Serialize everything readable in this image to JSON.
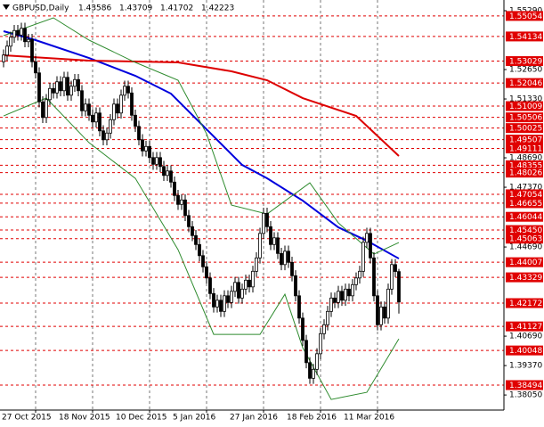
{
  "chart_data": {
    "type": "candlestick",
    "title": "GBPUSD,Daily",
    "categories": [
      "27 Oct 2015",
      null,
      null,
      null,
      null,
      null,
      null,
      null,
      null,
      null,
      null,
      null,
      null,
      null,
      null,
      null,
      "18 Nov 2015",
      null,
      null,
      null,
      null,
      null,
      null,
      null,
      null,
      null,
      null,
      null,
      null,
      null,
      null,
      null,
      "10 Dec 2015",
      null,
      null,
      null,
      null,
      null,
      null,
      null,
      null,
      null,
      null,
      null,
      null,
      null,
      null,
      null,
      "5 Jan 2016",
      null,
      null,
      null,
      null,
      null,
      null,
      null,
      null,
      null,
      null,
      null,
      null,
      null,
      null,
      null,
      "27 Jan 2016",
      null,
      null,
      null,
      null,
      null,
      null,
      null,
      null,
      null,
      null,
      null,
      null,
      null,
      null,
      null,
      "18 Feb 2016",
      null,
      null,
      null,
      null,
      null,
      null,
      null,
      null,
      null,
      null,
      null,
      null,
      null,
      null,
      null,
      "11 Mar 2016",
      null,
      null,
      null,
      null,
      null,
      null,
      null,
      null,
      null,
      null,
      null,
      null,
      null,
      null,
      null
    ],
    "open": [
      1.53,
      1.533,
      1.537,
      1.541,
      1.544,
      1.542,
      1.545,
      1.539,
      1.54,
      1.53,
      1.525,
      1.512,
      1.505,
      1.513,
      1.518,
      1.516,
      1.521,
      1.517,
      1.523,
      1.515,
      1.519,
      1.522,
      1.517,
      1.508,
      1.511,
      1.506,
      1.503,
      1.507,
      1.499,
      1.495,
      1.498,
      1.504,
      1.511,
      1.507,
      1.515,
      1.519,
      1.516,
      1.506,
      1.501,
      1.495,
      1.49,
      1.492,
      1.487,
      1.484,
      1.487,
      1.483,
      1.479,
      1.481,
      1.476,
      1.47,
      1.466,
      1.468,
      1.461,
      1.456,
      1.452,
      1.448,
      1.443,
      1.438,
      1.433,
      1.426,
      1.42,
      1.423,
      1.418,
      1.425,
      1.422,
      1.427,
      1.431,
      1.424,
      1.428,
      1.432,
      1.429,
      1.436,
      1.442,
      1.453,
      1.462,
      1.456,
      1.448,
      1.451,
      1.444,
      1.439,
      1.445,
      1.44,
      1.434,
      1.425,
      1.415,
      1.405,
      1.395,
      1.388,
      1.392,
      1.399,
      1.408,
      1.412,
      1.418,
      1.424,
      1.422,
      1.427,
      1.423,
      1.428,
      1.425,
      1.43,
      1.433,
      1.436,
      1.449,
      1.453,
      1.442,
      1.425,
      1.412,
      1.42,
      1.415,
      1.428,
      1.439,
      1.43586
    ],
    "high": [
      1.5355,
      1.5395,
      1.5435,
      1.5465,
      1.5465,
      1.5475,
      1.5475,
      1.5425,
      1.5425,
      1.5325,
      1.5275,
      1.5145,
      1.5155,
      1.5205,
      1.5205,
      1.5235,
      1.5235,
      1.5255,
      1.5255,
      1.5215,
      1.5245,
      1.5245,
      1.5195,
      1.5135,
      1.5135,
      1.5085,
      1.5095,
      1.5095,
      1.5015,
      1.5005,
      1.5065,
      1.5135,
      1.5135,
      1.5175,
      1.5215,
      1.5215,
      1.5185,
      1.5085,
      1.5035,
      1.4975,
      1.4945,
      1.4945,
      1.4895,
      1.4895,
      1.4895,
      1.4855,
      1.4835,
      1.4835,
      1.4785,
      1.4725,
      1.4705,
      1.4705,
      1.4635,
      1.4585,
      1.4545,
      1.4505,
      1.4455,
      1.4405,
      1.4355,
      1.4285,
      1.4255,
      1.4255,
      1.4275,
      1.4275,
      1.4295,
      1.4335,
      1.4335,
      1.4305,
      1.4345,
      1.4345,
      1.4385,
      1.4445,
      1.4555,
      1.4645,
      1.4645,
      1.4585,
      1.4535,
      1.4535,
      1.4465,
      1.4475,
      1.4475,
      1.4425,
      1.4365,
      1.4275,
      1.4175,
      1.4075,
      1.3975,
      1.3945,
      1.4015,
      1.4105,
      1.4145,
      1.4205,
      1.4265,
      1.4265,
      1.4295,
      1.4295,
      1.4305,
      1.4305,
      1.4325,
      1.4355,
      1.4385,
      1.4515,
      1.4555,
      1.4555,
      1.4445,
      1.4275,
      1.4225,
      1.4225,
      1.4305,
      1.4415,
      1.4415,
      1.43709
    ],
    "low": [
      1.5275,
      1.5305,
      1.5345,
      1.5385,
      1.5395,
      1.5395,
      1.5365,
      1.5365,
      1.5275,
      1.5225,
      1.5095,
      1.5025,
      1.5025,
      1.5105,
      1.5135,
      1.5135,
      1.5145,
      1.5145,
      1.5125,
      1.5125,
      1.5165,
      1.5145,
      1.5055,
      1.5055,
      1.5035,
      1.5005,
      1.5005,
      1.4965,
      1.4925,
      1.4925,
      1.4955,
      1.5015,
      1.5045,
      1.5045,
      1.5125,
      1.5135,
      1.5035,
      1.4985,
      1.4925,
      1.4875,
      1.4875,
      1.4845,
      1.4815,
      1.4815,
      1.4805,
      1.4765,
      1.4765,
      1.4735,
      1.4675,
      1.4635,
      1.4635,
      1.4585,
      1.4535,
      1.4495,
      1.4455,
      1.4405,
      1.4355,
      1.4305,
      1.4235,
      1.4175,
      1.4175,
      1.4155,
      1.4155,
      1.4195,
      1.4195,
      1.4245,
      1.4215,
      1.4215,
      1.4255,
      1.4265,
      1.4265,
      1.4335,
      1.4395,
      1.4505,
      1.4535,
      1.4455,
      1.4455,
      1.4415,
      1.4365,
      1.4365,
      1.4375,
      1.4315,
      1.4225,
      1.4125,
      1.4025,
      1.3925,
      1.3855,
      1.3855,
      1.3895,
      1.3965,
      1.4055,
      1.4095,
      1.4155,
      1.4195,
      1.4195,
      1.4205,
      1.4205,
      1.4225,
      1.4225,
      1.4275,
      1.4305,
      1.4335,
      1.4465,
      1.4395,
      1.4225,
      1.4095,
      1.4095,
      1.4125,
      1.4125,
      1.4255,
      1.4334,
      1.41702
    ],
    "close": [
      1.533,
      1.537,
      1.541,
      1.544,
      1.542,
      1.545,
      1.539,
      1.54,
      1.53,
      1.525,
      1.512,
      1.505,
      1.513,
      1.518,
      1.516,
      1.521,
      1.517,
      1.523,
      1.515,
      1.519,
      1.522,
      1.517,
      1.508,
      1.511,
      1.506,
      1.503,
      1.507,
      1.499,
      1.495,
      1.498,
      1.504,
      1.511,
      1.507,
      1.515,
      1.519,
      1.516,
      1.506,
      1.501,
      1.495,
      1.49,
      1.492,
      1.487,
      1.484,
      1.487,
      1.483,
      1.479,
      1.481,
      1.476,
      1.47,
      1.466,
      1.468,
      1.461,
      1.456,
      1.452,
      1.448,
      1.443,
      1.438,
      1.433,
      1.426,
      1.42,
      1.423,
      1.418,
      1.425,
      1.422,
      1.427,
      1.431,
      1.424,
      1.428,
      1.432,
      1.429,
      1.436,
      1.442,
      1.453,
      1.462,
      1.456,
      1.448,
      1.451,
      1.444,
      1.439,
      1.445,
      1.44,
      1.434,
      1.425,
      1.415,
      1.405,
      1.395,
      1.388,
      1.392,
      1.399,
      1.408,
      1.412,
      1.418,
      1.424,
      1.422,
      1.427,
      1.423,
      1.428,
      1.425,
      1.43,
      1.433,
      1.436,
      1.449,
      1.453,
      1.442,
      1.425,
      1.412,
      1.42,
      1.415,
      1.428,
      1.439,
      1.4359,
      1.42223
    ],
    "up_color": "#ffffff",
    "down_color": "#000000",
    "ylim": [
      1.37374,
      1.5557
    ],
    "yticks": [
      {
        "value": 1.5529,
        "label": "1.55290"
      },
      {
        "value": 1.5265,
        "label": "1.52650"
      },
      {
        "value": 1.5133,
        "label": "1.51330"
      },
      {
        "value": 1.4869,
        "label": "1.48690"
      },
      {
        "value": 1.4737,
        "label": "1.47370"
      },
      {
        "value": 1.4469,
        "label": "1.44690"
      },
      {
        "value": 1.4069,
        "label": "1.40690"
      },
      {
        "value": 1.3937,
        "label": "1.39370"
      },
      {
        "value": 1.3805,
        "label": "1.38050"
      }
    ],
    "levels": [
      1.55054,
      1.54134,
      1.53029,
      1.52046,
      1.51009,
      1.50506,
      1.50025,
      1.49507,
      1.49111,
      1.48355,
      1.48026,
      1.47054,
      1.46655,
      1.46044,
      {
        "value": 1.4545,
        "label": "1.45450"
      },
      1.45063,
      1.44007,
      1.43329,
      1.42172,
      1.41127,
      1.40048,
      1.38494
    ],
    "level_color": "#e00000",
    "lines": [
      {
        "color": "#0000dd",
        "x": [
          0,
          9,
          24,
          37,
          47,
          57,
          67,
          74,
          84,
          94,
          102,
          111
        ],
        "values": [
          1.5437,
          1.5397,
          1.5317,
          1.5237,
          1.5157,
          1.4997,
          1.4837,
          1.4777,
          1.4677,
          1.4557,
          1.4497,
          1.4417
        ]
      },
      {
        "color": "#dd0000",
        "x": [
          0,
          24,
          49,
          64,
          74,
          84,
          99,
          111
        ],
        "values": [
          1.5329,
          1.5305,
          1.5297,
          1.5257,
          1.5217,
          1.5137,
          1.5057,
          1.4877
        ]
      },
      {
        "color": "#2e8b2e",
        "x": [
          0,
          14,
          24,
          37,
          49,
          57,
          64,
          74,
          86,
          94,
          104,
          111
        ],
        "values": [
          1.5417,
          1.5497,
          1.5397,
          1.5297,
          1.5217,
          1.4977,
          1.4657,
          1.4617,
          1.4757,
          1.4577,
          1.4437,
          1.4489
        ]
      },
      {
        "color": "#2e8b2e",
        "x": [
          0,
          12,
          24,
          37,
          49,
          59,
          72,
          79,
          84,
          92,
          102,
          111
        ],
        "values": [
          1.5057,
          1.5137,
          1.4937,
          1.4777,
          1.4457,
          1.4077,
          1.4077,
          1.4257,
          1.4017,
          1.3785,
          1.3817,
          1.4057
        ]
      }
    ],
    "grid": true
  }
}
